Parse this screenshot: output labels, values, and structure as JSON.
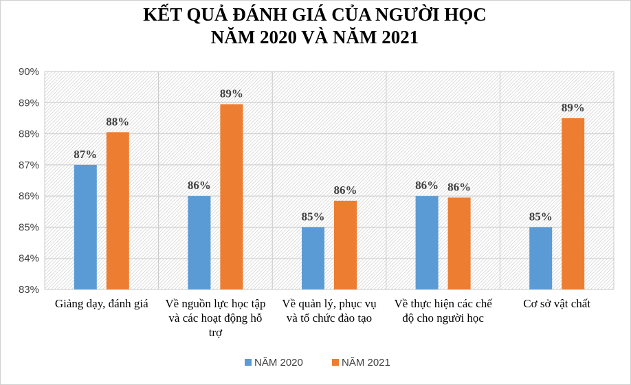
{
  "chart_data": {
    "type": "bar",
    "title_lines": [
      "KẾT QUẢ ĐÁNH GIÁ CỦA NGƯỜI HỌC",
      "NĂM 2020 VÀ NĂM 2021"
    ],
    "categories": [
      [
        "Giảng  dạy, đánh giá"
      ],
      [
        "Về nguồn lực học tập",
        "và các hoạt động hỗ",
        "trợ"
      ],
      [
        "Về  quản lý,  phục vụ",
        "và tổ chức đào tạo"
      ],
      [
        "Về thực hiện  các chế",
        "độ cho người  học"
      ],
      [
        "Cơ sở vật chất"
      ]
    ],
    "series": [
      {
        "name": "NĂM 2020",
        "color": "#5b9bd5",
        "values": [
          87.0,
          86.0,
          85.0,
          86.0,
          85.0
        ],
        "labels": [
          "87%",
          "86%",
          "85%",
          "86%",
          "85%"
        ]
      },
      {
        "name": "NĂM 2021",
        "color": "#ed7d31",
        "values": [
          88.05,
          88.95,
          85.85,
          85.95,
          88.5
        ],
        "labels": [
          "88%",
          "89%",
          "86%",
          "86%",
          "89%"
        ]
      }
    ],
    "ylim": [
      83,
      90
    ],
    "yticks": [
      83,
      84,
      85,
      86,
      87,
      88,
      89,
      90
    ],
    "ytick_labels": [
      "83%",
      "84%",
      "85%",
      "86%",
      "87%",
      "88%",
      "89%",
      "90%"
    ],
    "xlabel": "",
    "ylabel": "",
    "grid": true,
    "legend_position": "bottom"
  }
}
